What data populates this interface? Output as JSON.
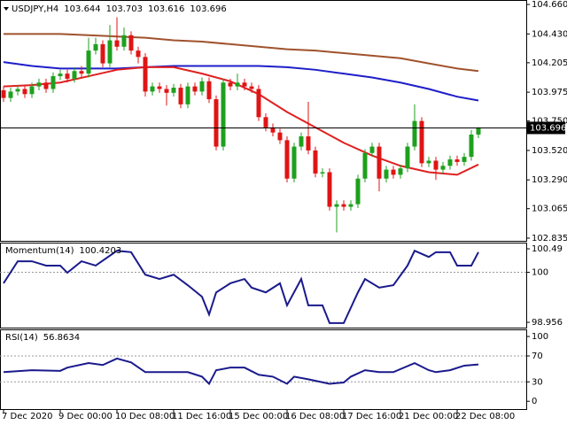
{
  "chart_data": [
    {
      "type": "candlestick",
      "title": "USDJPY,H4",
      "categories": [
        "7 Dec 2020",
        null,
        null,
        null,
        null,
        null,
        null,
        null,
        "9 Dec 00:00",
        null,
        null,
        null,
        null,
        null,
        null,
        null,
        "10 Dec 08:00",
        null,
        null,
        null,
        null,
        null,
        null,
        null,
        "11 Dec 16:00",
        null,
        null,
        null,
        null,
        null,
        null,
        null,
        "15 Dec 00:00",
        null,
        null,
        null,
        null,
        null,
        null,
        null,
        "16 Dec 08:00",
        null,
        null,
        null,
        null,
        null,
        null,
        null,
        "17 Dec 16:00",
        null,
        null,
        null,
        null,
        null,
        null,
        null,
        "21 Dec 00:00",
        null,
        null,
        null,
        null,
        null,
        null,
        null,
        "22 Dec 08:00",
        null,
        null,
        null
      ],
      "open": [
        103.99,
        103.93,
        103.98,
        104.0,
        103.96,
        104.02,
        104.05,
        104.0,
        104.1,
        104.12,
        104.08,
        104.14,
        104.12,
        104.3,
        104.35,
        104.2,
        104.38,
        104.33,
        104.42,
        104.3,
        104.25,
        103.98,
        104.02,
        104.0,
        103.97,
        104.01,
        103.88,
        104.02,
        103.98,
        104.06,
        103.92,
        103.55,
        104.05,
        104.02,
        104.05,
        104.02,
        104.0,
        103.78,
        103.7,
        103.66,
        103.6,
        103.3,
        103.55,
        103.63,
        103.52,
        103.34,
        103.35,
        103.08,
        103.1,
        103.08,
        103.1,
        103.3,
        103.5,
        103.55,
        103.3,
        103.37,
        103.33,
        103.38,
        103.55,
        103.75,
        103.42,
        103.44,
        103.37,
        103.4,
        103.45,
        103.43,
        103.47,
        103.644
      ],
      "high": [
        104.02,
        104.01,
        104.03,
        104.03,
        104.05,
        104.08,
        104.08,
        104.13,
        104.15,
        104.15,
        104.17,
        104.18,
        104.4,
        104.4,
        104.38,
        104.5,
        104.56,
        104.48,
        104.45,
        104.33,
        104.28,
        104.05,
        104.05,
        104.03,
        104.04,
        104.04,
        104.05,
        104.05,
        104.09,
        104.09,
        103.95,
        104.08,
        104.08,
        104.12,
        104.08,
        104.05,
        104.03,
        103.81,
        103.73,
        103.69,
        103.63,
        103.58,
        103.66,
        103.9,
        103.55,
        103.38,
        103.38,
        103.13,
        103.13,
        103.13,
        103.33,
        103.53,
        103.58,
        103.58,
        103.4,
        103.4,
        103.41,
        103.58,
        103.88,
        103.78,
        103.47,
        103.47,
        103.43,
        103.48,
        103.48,
        103.5,
        103.68,
        103.703
      ],
      "low": [
        103.9,
        103.9,
        103.95,
        103.93,
        103.93,
        103.99,
        103.97,
        103.97,
        104.07,
        104.05,
        104.05,
        104.09,
        104.09,
        104.27,
        104.17,
        104.17,
        104.3,
        104.3,
        104.27,
        104.2,
        103.94,
        103.95,
        103.97,
        103.87,
        103.94,
        103.85,
        103.85,
        103.95,
        103.95,
        103.89,
        103.52,
        103.52,
        103.99,
        103.99,
        103.99,
        103.97,
        103.75,
        103.67,
        103.63,
        103.57,
        103.27,
        103.27,
        103.52,
        103.49,
        103.31,
        103.31,
        103.05,
        102.88,
        103.05,
        103.05,
        103.07,
        103.27,
        103.47,
        103.2,
        103.27,
        103.3,
        103.3,
        103.35,
        103.52,
        103.39,
        103.39,
        103.29,
        103.34,
        103.37,
        103.4,
        103.4,
        103.44,
        103.616
      ],
      "close": [
        103.93,
        103.98,
        104.0,
        103.96,
        104.02,
        104.05,
        104.0,
        104.1,
        104.12,
        104.08,
        104.14,
        104.12,
        104.3,
        104.35,
        104.2,
        104.38,
        104.33,
        104.42,
        104.3,
        104.25,
        103.98,
        104.02,
        104.0,
        103.97,
        104.01,
        103.88,
        104.02,
        103.98,
        104.06,
        103.92,
        103.55,
        104.05,
        104.02,
        104.05,
        104.02,
        104.0,
        103.78,
        103.7,
        103.66,
        103.6,
        103.3,
        103.55,
        103.63,
        103.52,
        103.34,
        103.35,
        103.08,
        103.1,
        103.08,
        103.1,
        103.3,
        103.5,
        103.55,
        103.3,
        103.37,
        103.33,
        103.38,
        103.55,
        103.75,
        103.42,
        103.44,
        103.37,
        103.4,
        103.45,
        103.43,
        103.47,
        103.644,
        103.696
      ],
      "up_color": "#1ea01e",
      "down_color": "#e01414",
      "series": [
        {
          "color": "#a0522d",
          "x": [
            0,
            4,
            8,
            12,
            16,
            20,
            24,
            28,
            32,
            36,
            40,
            44,
            48,
            52,
            56,
            60,
            64,
            67
          ],
          "values": [
            104.43,
            104.43,
            104.43,
            104.42,
            104.41,
            104.4,
            104.38,
            104.37,
            104.35,
            104.33,
            104.31,
            104.3,
            104.28,
            104.26,
            104.24,
            104.2,
            104.16,
            104.14
          ]
        },
        {
          "color": "#1e1ec8",
          "x": [
            0,
            4,
            8,
            12,
            16,
            20,
            24,
            28,
            32,
            36,
            40,
            44,
            48,
            52,
            56,
            60,
            64,
            67
          ],
          "values": [
            104.21,
            104.18,
            104.16,
            104.16,
            104.16,
            104.17,
            104.18,
            104.18,
            104.18,
            104.18,
            104.17,
            104.15,
            104.12,
            104.09,
            104.05,
            104.0,
            103.94,
            103.91
          ]
        },
        {
          "color": "#e02020",
          "x": [
            0,
            4,
            8,
            12,
            16,
            20,
            24,
            28,
            32,
            36,
            40,
            44,
            48,
            52,
            56,
            60,
            64,
            67
          ],
          "values": [
            104.02,
            104.03,
            104.05,
            104.1,
            104.15,
            104.17,
            104.17,
            104.12,
            104.06,
            103.96,
            103.82,
            103.7,
            103.58,
            103.48,
            103.4,
            103.35,
            103.33,
            103.41
          ]
        }
      ],
      "ylim": [
        102.814,
        104.695
      ],
      "yticks": [
        {
          "value": 104.66,
          "label": "104.660"
        },
        {
          "value": 104.43,
          "label": "104.430"
        },
        104.205,
        103.975,
        {
          "value": 103.75,
          "label": "103.750"
        },
        {
          "value": 103.52,
          "label": "103.520"
        },
        {
          "value": 103.29,
          "label": "103.290"
        },
        103.065,
        102.835
      ],
      "last_price_line": true
    },
    {
      "type": "line",
      "title": "Momentum(14)",
      "series": [
        {
          "color": "#1a1a8c",
          "x": [
            0,
            2,
            4,
            6,
            8,
            9,
            11,
            13,
            16,
            18,
            20,
            22,
            24,
            26,
            28,
            29,
            30,
            32,
            34,
            35,
            37,
            39,
            40,
            42,
            43,
            45,
            46,
            48,
            50,
            51,
            53,
            55,
            57,
            58,
            60,
            61,
            63,
            64,
            66,
            67
          ],
          "values": [
            99.77,
            100.23,
            100.23,
            100.14,
            100.14,
            99.99,
            100.23,
            100.14,
            100.45,
            100.42,
            99.95,
            99.86,
            99.95,
            99.73,
            99.49,
            99.12,
            99.58,
            99.77,
            99.86,
            99.68,
            99.58,
            99.77,
            99.31,
            99.86,
            99.31,
            99.31,
            98.94,
            98.94,
            99.58,
            99.86,
            99.68,
            99.73,
            100.14,
            100.45,
            100.32,
            100.42,
            100.42,
            100.14,
            100.14,
            100.4203
          ]
        }
      ],
      "ylim": [
        98.845,
        100.62
      ],
      "yticks": [
        100.49,
        100,
        98.956
      ],
      "levels": [
        100
      ]
    },
    {
      "type": "line",
      "title": "RSI(14)",
      "series": [
        {
          "color": "#1a1a8c",
          "x": [
            0,
            4,
            8,
            9,
            12,
            14,
            16,
            18,
            20,
            22,
            26,
            28,
            29,
            30,
            32,
            34,
            36,
            38,
            40,
            41,
            43,
            46,
            48,
            49,
            51,
            53,
            55,
            58,
            60,
            61,
            63,
            65,
            67
          ],
          "values": [
            45,
            48,
            47,
            52,
            59,
            56,
            66,
            60,
            45,
            45,
            45,
            38,
            27,
            48,
            52,
            52,
            41,
            38,
            27,
            38,
            34,
            27,
            29,
            38,
            48,
            45,
            45,
            59,
            48,
            45,
            48,
            55,
            56.8634
          ]
        }
      ],
      "ylim": [
        -12,
        111
      ],
      "yticks": [
        100,
        70,
        30,
        0
      ],
      "levels": [
        70,
        30
      ]
    }
  ]
}
